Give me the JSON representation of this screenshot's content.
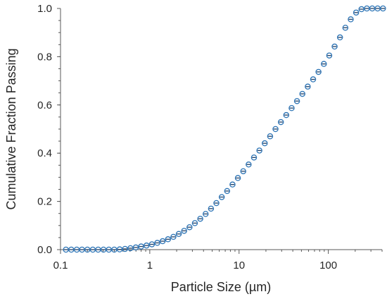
{
  "chart_data": {
    "type": "scatter",
    "title": "",
    "xlabel": "Particle Size (µm)",
    "ylabel": "Cumulative Fraction Passing",
    "x_scale": "log",
    "xlim": [
      0.1,
      400
    ],
    "ylim": [
      0.0,
      1.0
    ],
    "x_major_ticks": [
      0.1,
      1,
      10,
      100
    ],
    "x_tick_labels": [
      "0.1",
      "1",
      "10",
      "100"
    ],
    "y_ticks": [
      0.0,
      0.2,
      0.4,
      0.6,
      0.8,
      1.0
    ],
    "y_tick_labels": [
      "0.0",
      "0.2",
      "0.4",
      "0.6",
      "0.8",
      "1.0"
    ],
    "grid": false,
    "legend": "none",
    "marker_color": "#2e75b6",
    "series": [
      {
        "x": [
          0.115,
          0.132,
          0.152,
          0.174,
          0.2,
          0.23,
          0.264,
          0.303,
          0.348,
          0.4,
          0.46,
          0.528,
          0.607,
          0.697,
          0.8,
          0.919,
          1.056,
          1.213,
          1.393,
          1.6,
          1.838,
          2.111,
          2.425,
          2.786,
          3.2,
          3.676,
          4.222,
          4.85,
          5.572,
          6.4,
          7.352,
          8.445,
          9.7,
          11.14,
          12.8,
          14.7,
          16.89,
          19.4,
          22.29,
          25.6,
          29.41,
          33.78,
          38.8,
          44.57,
          51.2,
          58.81,
          67.56,
          77.6,
          89.14,
          102.4,
          117.6,
          135.1,
          155.2,
          178.3,
          204.8,
          235.2,
          270.2,
          310.4,
          356.6,
          409.6
        ],
        "y": [
          0.0,
          0.0,
          0.0,
          0.0,
          0.0,
          0.0,
          0.0,
          0.0,
          0.0,
          0.0,
          0.001,
          0.003,
          0.006,
          0.009,
          0.013,
          0.017,
          0.022,
          0.028,
          0.035,
          0.043,
          0.053,
          0.065,
          0.078,
          0.093,
          0.11,
          0.128,
          0.148,
          0.17,
          0.193,
          0.218,
          0.243,
          0.27,
          0.297,
          0.325,
          0.353,
          0.382,
          0.411,
          0.441,
          0.47,
          0.5,
          0.529,
          0.558,
          0.587,
          0.616,
          0.646,
          0.676,
          0.706,
          0.737,
          0.77,
          0.805,
          0.842,
          0.88,
          0.92,
          0.955,
          0.983,
          0.997,
          1.0,
          1.0,
          1.0,
          1.0
        ]
      }
    ]
  }
}
